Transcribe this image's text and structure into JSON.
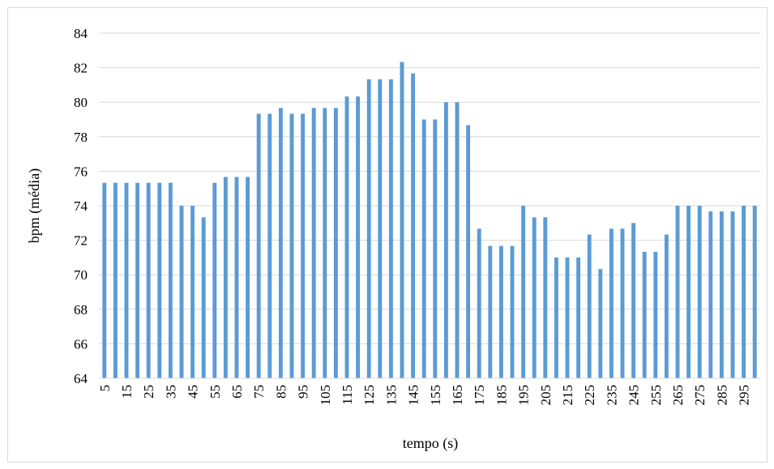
{
  "chart_data": {
    "type": "bar",
    "title": "",
    "xlabel": "tempo (s)",
    "ylabel": "bpm (média)",
    "ylim": [
      64,
      84
    ],
    "y_ticks": [
      64,
      66,
      68,
      70,
      72,
      74,
      76,
      78,
      80,
      82,
      84
    ],
    "grid": "horizontal",
    "bar_color": "#5b9bd5",
    "categories": [
      "5",
      "10",
      "15",
      "20",
      "25",
      "30",
      "35",
      "40",
      "45",
      "50",
      "55",
      "60",
      "65",
      "70",
      "75",
      "80",
      "85",
      "90",
      "95",
      "100",
      "105",
      "110",
      "115",
      "120",
      "125",
      "130",
      "135",
      "140",
      "145",
      "150",
      "155",
      "160",
      "165",
      "170",
      "175",
      "180",
      "185",
      "190",
      "195",
      "200",
      "205",
      "210",
      "215",
      "220",
      "225",
      "230",
      "235",
      "240",
      "245",
      "250",
      "255",
      "260",
      "265",
      "270",
      "275",
      "280",
      "285",
      "290",
      "295",
      "300"
    ],
    "x_tick_labels": [
      "5",
      "15",
      "25",
      "35",
      "45",
      "55",
      "65",
      "75",
      "85",
      "95",
      "105",
      "115",
      "125",
      "135",
      "145",
      "155",
      "165",
      "175",
      "185",
      "195",
      "205",
      "215",
      "225",
      "235",
      "245",
      "255",
      "265",
      "275",
      "285",
      "295"
    ],
    "values": [
      75.33,
      75.33,
      75.33,
      75.33,
      75.33,
      75.33,
      75.33,
      74.0,
      74.0,
      73.33,
      75.33,
      75.67,
      75.67,
      75.67,
      79.33,
      79.33,
      79.67,
      79.33,
      79.33,
      79.67,
      79.67,
      79.67,
      80.33,
      80.33,
      81.33,
      81.33,
      81.33,
      82.33,
      81.67,
      79.0,
      79.0,
      80.0,
      80.0,
      78.67,
      72.67,
      71.67,
      71.67,
      71.67,
      74.0,
      73.33,
      73.33,
      71.0,
      71.0,
      71.0,
      72.33,
      70.33,
      72.67,
      72.67,
      73.0,
      71.33,
      71.33,
      72.33,
      74.0,
      74.0,
      74.0,
      73.67,
      73.67,
      73.67,
      74.0,
      74.0
    ]
  }
}
